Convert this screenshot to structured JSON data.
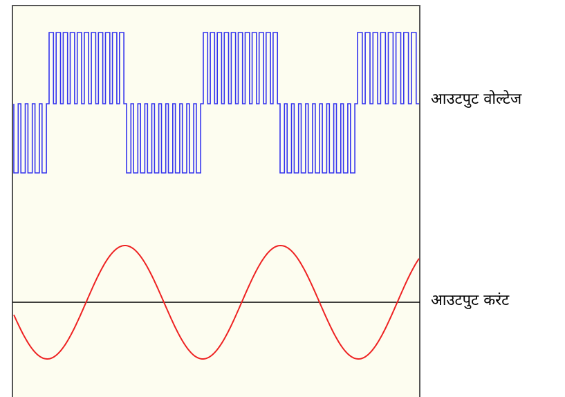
{
  "labels": {
    "output_voltage": "आउटपुट वोल्टेज",
    "output_current": "आउटपुट करंट"
  },
  "colors": {
    "background": "#fdfdf0",
    "frame": "#555555",
    "voltage": "#3333ee",
    "current": "#ee2222",
    "axis": "#000000"
  },
  "waveforms": {
    "voltage_type": "PWM square wave",
    "current_type": "sine wave"
  }
}
